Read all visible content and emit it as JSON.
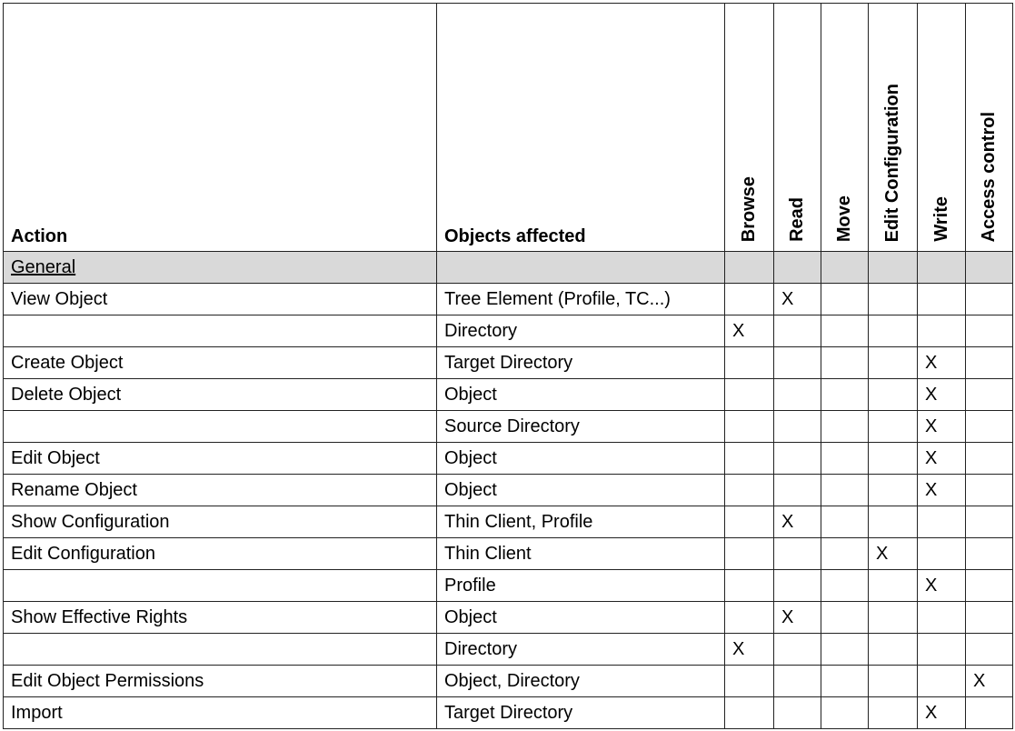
{
  "headers": {
    "action": "Action",
    "objects": "Objects affected",
    "perms": [
      "Browse",
      "Read",
      "Move",
      "Edit Configuration",
      "Write",
      "Access control"
    ]
  },
  "section": "General",
  "rows": [
    {
      "action": "View Object",
      "object": "Tree Element (Profile, TC...)",
      "marks": [
        "",
        "X",
        "",
        "",
        "",
        ""
      ]
    },
    {
      "action": "",
      "object": "Directory",
      "marks": [
        "X",
        "",
        "",
        "",
        "",
        ""
      ]
    },
    {
      "action": "Create Object",
      "object": "Target Directory",
      "marks": [
        "",
        "",
        "",
        "",
        "X",
        ""
      ]
    },
    {
      "action": "Delete Object",
      "object": "Object",
      "marks": [
        "",
        "",
        "",
        "",
        "X",
        ""
      ]
    },
    {
      "action": "",
      "object": "Source Directory",
      "marks": [
        "",
        "",
        "",
        "",
        "X",
        ""
      ]
    },
    {
      "action": "Edit Object",
      "object": "Object",
      "marks": [
        "",
        "",
        "",
        "",
        "X",
        ""
      ]
    },
    {
      "action": "Rename Object",
      "object": "Object",
      "marks": [
        "",
        "",
        "",
        "",
        "X",
        ""
      ]
    },
    {
      "action": "Show Configuration",
      "object": "Thin Client, Profile",
      "marks": [
        "",
        "X",
        "",
        "",
        "",
        ""
      ]
    },
    {
      "action": "Edit Configuration",
      "object": "Thin Client",
      "marks": [
        "",
        "",
        "",
        "X",
        "",
        ""
      ]
    },
    {
      "action": "",
      "object": "Profile",
      "marks": [
        "",
        "",
        "",
        "",
        "X",
        ""
      ]
    },
    {
      "action": "Show Effective Rights",
      "object": "Object",
      "marks": [
        "",
        "X",
        "",
        "",
        "",
        ""
      ]
    },
    {
      "action": "",
      "object": "Directory",
      "marks": [
        "X",
        "",
        "",
        "",
        "",
        ""
      ]
    },
    {
      "action": "Edit Object Permissions",
      "object": "Object, Directory",
      "marks": [
        "",
        "",
        "",
        "",
        "",
        "X"
      ]
    },
    {
      "action": "Import",
      "object": "Target Directory",
      "marks": [
        "",
        "",
        "",
        "",
        "X",
        ""
      ]
    }
  ]
}
